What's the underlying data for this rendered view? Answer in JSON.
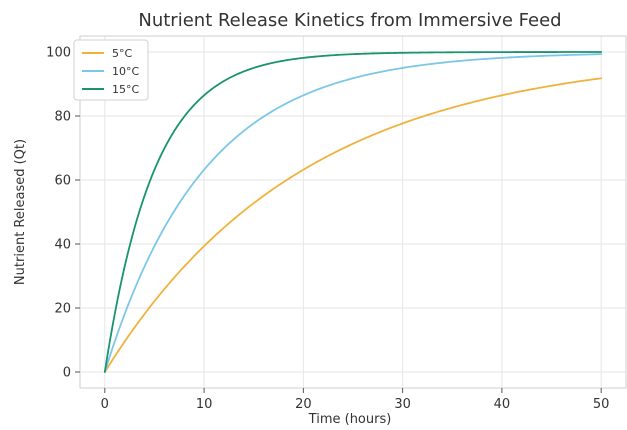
{
  "chart_data": {
    "type": "line",
    "title": "Nutrient Release Kinetics from Immersive Feed",
    "xlabel": "Time (hours)",
    "ylabel": "Nutrient Released (Qt)",
    "xlim": [
      -2.5,
      52.5
    ],
    "ylim": [
      -5,
      105
    ],
    "xticks": [
      0,
      10,
      20,
      30,
      40,
      50
    ],
    "yticks": [
      0,
      20,
      40,
      60,
      80,
      100
    ],
    "grid": true,
    "legend_position": "upper-left",
    "x_range": [
      0,
      50
    ],
    "series": [
      {
        "name": "5°C",
        "color": "#f0b23c",
        "k": 0.05,
        "max": 100
      },
      {
        "name": "10°C",
        "color": "#7cc7e8",
        "k": 0.1,
        "max": 100
      },
      {
        "name": "15°C",
        "color": "#1a936f",
        "k": 0.2,
        "max": 100
      }
    ]
  }
}
